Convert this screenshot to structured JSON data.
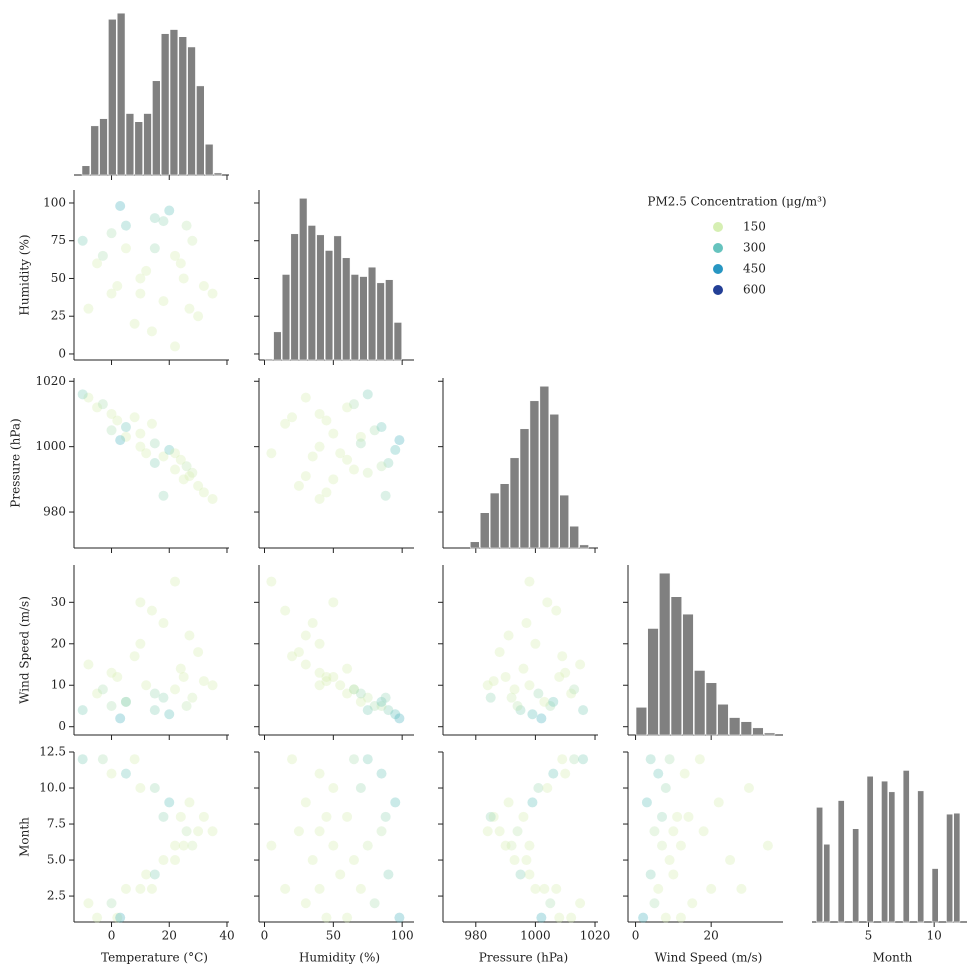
{
  "chart_data": {
    "type": "pairplot",
    "variables": [
      {
        "name": "Temperature (°C)",
        "lim": [
          -13,
          40.7
        ],
        "xticks": [
          0,
          20,
          40
        ],
        "bins": [
          -10.4,
          -7.35,
          -4.3,
          -1.25,
          1.8,
          4.85,
          7.9,
          10.95,
          14,
          17.05,
          20.1,
          23.15,
          26.2,
          29.25,
          32.3,
          35.35,
          38.4
        ],
        "counts": [
          9,
          48,
          55,
          152,
          158,
          60,
          52,
          60,
          92,
          138,
          142,
          135,
          125,
          87,
          30,
          2
        ],
        "count_lim": [
          0,
          166
        ]
      },
      {
        "name": "Humidity (%)",
        "lim": [
          -4,
          108.6
        ],
        "xticks": [
          0,
          50,
          100
        ],
        "yticks": [
          0,
          25,
          50,
          75,
          100
        ],
        "bins": [
          0,
          6.25,
          12.5,
          18.75,
          25,
          31.25,
          37.5,
          43.75,
          50,
          56.25,
          62.5,
          68.75,
          75,
          81.25,
          87.5,
          93.75,
          100
        ],
        "counts": [
          1,
          27,
          82,
          121,
          155,
          129,
          120,
          105,
          119,
          98,
          82,
          80,
          89,
          74,
          77,
          36
        ],
        "count_lim": [
          0,
          163
        ]
      },
      {
        "name": "Pressure (hPa)",
        "lim": [
          969,
          1021
        ],
        "xticks": [
          980,
          1000,
          1020
        ],
        "yticks": [
          980,
          1000,
          1020
        ],
        "bins": [
          978,
          981.33,
          984.67,
          988,
          991.33,
          994.67,
          998,
          1001.33,
          1004.67,
          1008,
          1011.33,
          1014.67,
          1018
        ],
        "counts": [
          6,
          34,
          53,
          62,
          87,
          115,
          142,
          156,
          129,
          51,
          21,
          3
        ],
        "count_lim": [
          0,
          164
        ]
      },
      {
        "name": "Wind Speed (m/s)",
        "lim": [
          -2,
          39
        ],
        "xticks": [
          0,
          20
        ],
        "yticks": [
          0,
          10,
          20,
          30
        ],
        "bins": [
          0,
          3.08,
          6.17,
          9.25,
          12.33,
          15.42,
          18.5,
          21.58,
          24.67,
          27.75,
          30.83,
          33.92,
          37
        ],
        "counts": [
          27,
          104,
          158,
          135,
          118,
          63,
          51,
          30,
          17,
          13,
          7,
          2
        ],
        "count_lim": [
          0,
          166
        ]
      },
      {
        "name": "Month",
        "lim": [
          0.7,
          12.5
        ],
        "xticks": [
          5,
          10
        ],
        "yticks": [
          {
            "value": 2.5,
            "label": "2.5"
          },
          {
            "value": 5,
            "label": "5.0"
          },
          {
            "value": 7.5,
            "label": "7.5"
          },
          {
            "value": 10,
            "label": "10.0"
          },
          {
            "value": 12.5,
            "label": "12.5"
          }
        ],
        "bins": [
          1,
          1.55,
          2.1,
          2.65,
          3.2,
          3.75,
          4.3,
          4.85,
          5.4,
          5.95,
          6.5,
          7.05,
          7.6,
          8.15,
          8.7,
          9.25,
          9.8,
          10.35,
          10.9,
          11.45,
          12
        ],
        "counts": [
          118,
          80,
          0,
          125,
          0,
          96,
          0,
          150,
          0,
          145,
          134,
          0,
          156,
          0,
          135,
          0,
          55,
          0,
          111,
          112
        ],
        "count_lim": [
          0,
          175
        ]
      }
    ],
    "samples": [
      [
        -5,
        2,
        0,
        -8,
        5,
        10,
        12,
        15,
        18,
        22,
        25,
        28,
        30,
        26,
        32,
        24,
        20,
        27,
        15,
        10,
        5,
        0,
        -3,
        8,
        3,
        14,
        35,
        22,
        -10,
        18
      ],
      [
        60,
        45,
        80,
        30,
        70,
        40,
        55,
        90,
        35,
        65,
        50,
        75,
        25,
        85,
        45,
        60,
        95,
        30,
        70,
        50,
        85,
        40,
        65,
        20,
        98,
        15,
        40,
        5,
        75,
        88
      ],
      [
        1012,
        1008,
        1005,
        1015,
        1003,
        1000,
        998,
        995,
        997,
        993,
        990,
        992,
        988,
        994,
        986,
        996,
        999,
        991,
        1001,
        1004,
        1006,
        1010,
        1013,
        1009,
        1002,
        1007,
        984,
        998,
        1016,
        985
      ],
      [
        8,
        12,
        5,
        15,
        6,
        20,
        10,
        4,
        25,
        9,
        12,
        7,
        18,
        5,
        11,
        14,
        3,
        22,
        8,
        30,
        6,
        13,
        9,
        17,
        2,
        28,
        10,
        35,
        4,
        7
      ],
      [
        1,
        1,
        2,
        2,
        3,
        3,
        4,
        4,
        5,
        5,
        6,
        6,
        7,
        7,
        8,
        8,
        9,
        9,
        10,
        10,
        11,
        11,
        12,
        12,
        1,
        3,
        7,
        6,
        12,
        8
      ]
    ],
    "hue": {
      "values": [
        120,
        90,
        200,
        80,
        150,
        100,
        130,
        250,
        70,
        140,
        110,
        160,
        90,
        180,
        100,
        120,
        300,
        80,
        220,
        95,
        280,
        110,
        200,
        85,
        350,
        60,
        90,
        50,
        260,
        230
      ]
    },
    "legend": {
      "title": "PM2.5 Concentration (μg/m³)",
      "items": [
        150,
        300,
        450,
        600
      ],
      "colors": [
        "#d6efb3",
        "#66c3be",
        "#2796c2",
        "#233f96"
      ]
    },
    "hist_color": "#808080"
  }
}
